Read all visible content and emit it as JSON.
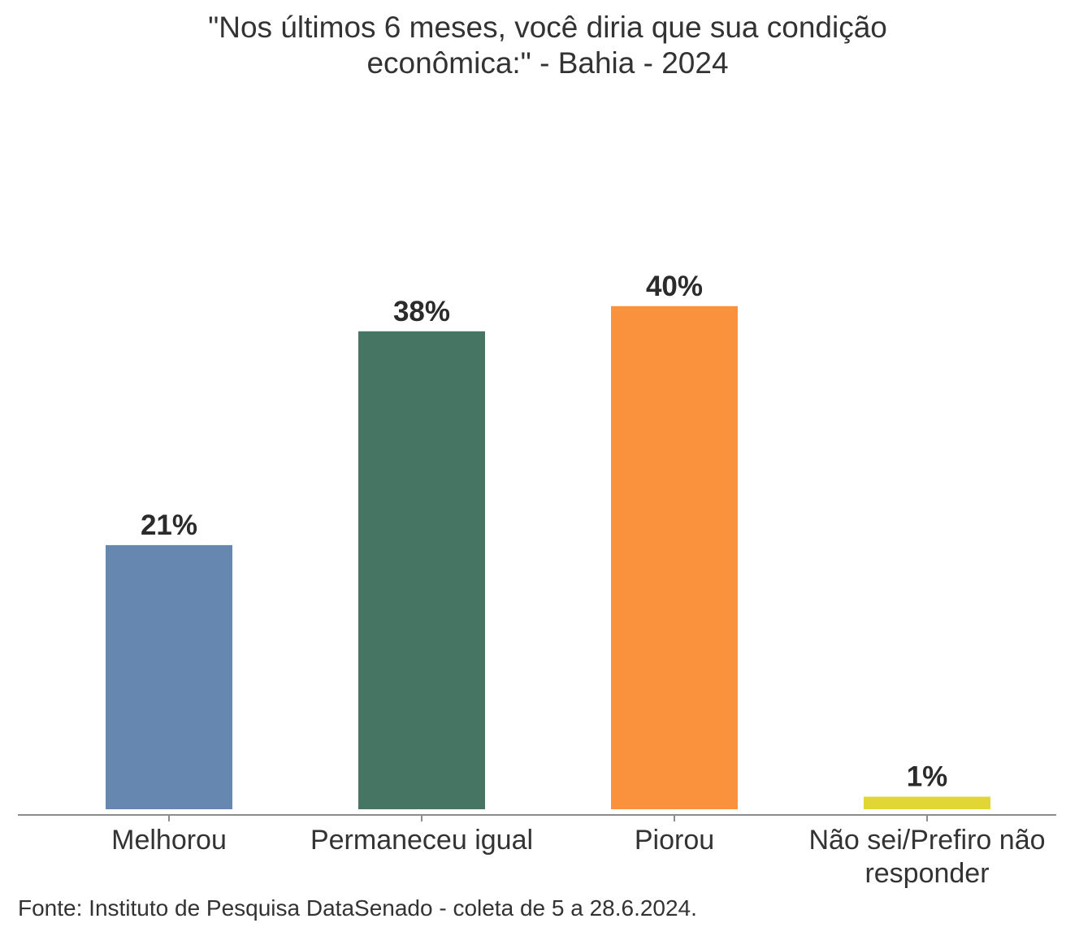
{
  "chart_data": {
    "type": "bar",
    "title_lines": [
      "\"Nos últimos 6 meses, você diria que sua condição",
      "econômica:\" - Bahia - 2024"
    ],
    "categories": [
      [
        "Melhorou"
      ],
      [
        "Permaneceu igual"
      ],
      [
        "Piorou"
      ],
      [
        "Não sei/Prefiro não",
        "responder"
      ]
    ],
    "values": [
      21,
      38,
      40,
      1
    ],
    "value_labels": [
      "21%",
      "38%",
      "40%",
      "1%"
    ],
    "colors": [
      "#6688b0",
      "#467564",
      "#fa913c",
      "#e2d636"
    ],
    "axis_color": "#8c8c8c",
    "ylim": [
      0,
      40
    ],
    "xlabel": "",
    "ylabel": "",
    "grid": false,
    "legend": "none"
  },
  "source": "Fonte: Instituto de Pesquisa DataSenado - coleta de 5 a 28.6.2024."
}
